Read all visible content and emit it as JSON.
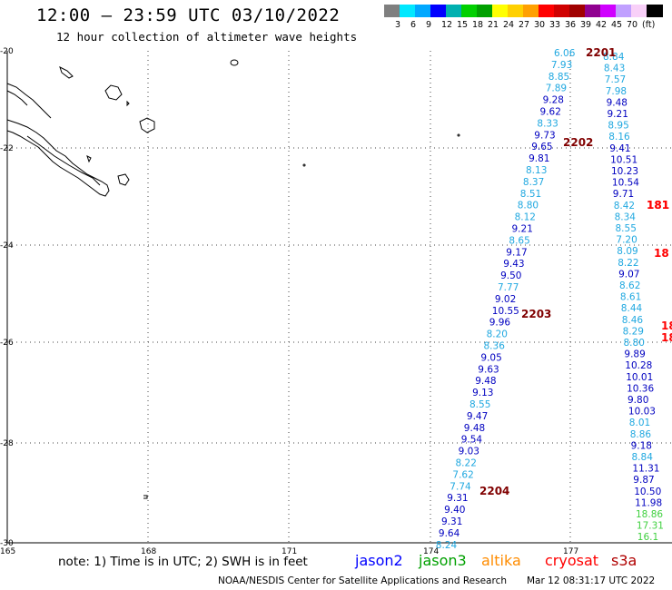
{
  "header": {
    "title": "12:00 — 23:59 UTC 03/10/2022",
    "subtitle": "12 hour collection of altimeter wave heights"
  },
  "color_scale": {
    "unit_label": "(ft)",
    "colors": [
      "#7f7f7f",
      "#00e8ff",
      "#00a8ff",
      "#0000ff",
      "#00b0b0",
      "#00d000",
      "#00a000",
      "#ffff00",
      "#ffd000",
      "#ffa000",
      "#ff0000",
      "#d00000",
      "#a00000",
      "#900090",
      "#d000ff",
      "#c0a0ff",
      "#f8d0f8",
      "#000000"
    ],
    "labels": [
      "3",
      "6",
      "9",
      "12",
      "15",
      "18",
      "21",
      "24",
      "27",
      "30",
      "33",
      "36",
      "39",
      "42",
      "45",
      "70",
      "(ft)"
    ]
  },
  "map": {
    "lat_labels": [
      "-20",
      "-22",
      "-24",
      "-26",
      "-28",
      "-30"
    ],
    "lon_labels": [
      "165",
      "168",
      "171",
      "174",
      "177"
    ],
    "track_labels": [
      {
        "text": "2201",
        "color": "#800000"
      },
      {
        "text": "2202",
        "color": "#800000"
      },
      {
        "text": "2203",
        "color": "#800000"
      },
      {
        "text": "2204",
        "color": "#800000"
      },
      {
        "text": "181",
        "color": "#ff0000"
      },
      {
        "text": "181",
        "color": "#ff0000"
      },
      {
        "text": "18",
        "color": "#ff0000"
      },
      {
        "text": "18",
        "color": "#ff0000"
      },
      {
        "text": "18",
        "color": "#ff0000"
      }
    ],
    "track1_values": [
      {
        "v": "6.06",
        "c": "#20a8e0"
      },
      {
        "v": "7.93",
        "c": "#20a8e0"
      },
      {
        "v": "8.85",
        "c": "#20a8e0"
      },
      {
        "v": "7.89",
        "c": "#20a8e0"
      },
      {
        "v": "9.28",
        "c": "#0000c0"
      },
      {
        "v": "9.62",
        "c": "#0000c0"
      },
      {
        "v": "8.33",
        "c": "#20a8e0"
      },
      {
        "v": "9.73",
        "c": "#0000c0"
      },
      {
        "v": "9.65",
        "c": "#0000c0"
      },
      {
        "v": "9.81",
        "c": "#0000c0"
      },
      {
        "v": "8.13",
        "c": "#20a8e0"
      },
      {
        "v": "8.37",
        "c": "#20a8e0"
      },
      {
        "v": "8.51",
        "c": "#20a8e0"
      },
      {
        "v": "8.80",
        "c": "#20a8e0"
      },
      {
        "v": "8.12",
        "c": "#20a8e0"
      },
      {
        "v": "9.21",
        "c": "#0000c0"
      },
      {
        "v": "8.65",
        "c": "#20a8e0"
      },
      {
        "v": "9.17",
        "c": "#0000c0"
      },
      {
        "v": "9.43",
        "c": "#0000c0"
      },
      {
        "v": "9.50",
        "c": "#0000c0"
      },
      {
        "v": "7.77",
        "c": "#20a8e0"
      },
      {
        "v": "9.02",
        "c": "#0000c0"
      },
      {
        "v": "10.55",
        "c": "#0000c0"
      },
      {
        "v": "9.96",
        "c": "#0000c0"
      },
      {
        "v": "8.20",
        "c": "#20a8e0"
      },
      {
        "v": "8.36",
        "c": "#20a8e0"
      },
      {
        "v": "9.05",
        "c": "#0000c0"
      },
      {
        "v": "9.63",
        "c": "#0000c0"
      },
      {
        "v": "9.48",
        "c": "#0000c0"
      },
      {
        "v": "9.13",
        "c": "#0000c0"
      },
      {
        "v": "8.55",
        "c": "#20a8e0"
      },
      {
        "v": "9.47",
        "c": "#0000c0"
      },
      {
        "v": "9.48",
        "c": "#0000c0"
      },
      {
        "v": "9.54",
        "c": "#0000c0"
      },
      {
        "v": "9.03",
        "c": "#0000c0"
      },
      {
        "v": "8.22",
        "c": "#20a8e0"
      },
      {
        "v": "7.62",
        "c": "#20a8e0"
      },
      {
        "v": "7.74",
        "c": "#20a8e0"
      },
      {
        "v": "9.31",
        "c": "#0000c0"
      },
      {
        "v": "9.40",
        "c": "#0000c0"
      },
      {
        "v": "9.31",
        "c": "#0000c0"
      },
      {
        "v": "9.64",
        "c": "#0000c0"
      },
      {
        "v": "8.24",
        "c": "#20a8e0"
      }
    ],
    "track2_values": [
      {
        "v": "8.84",
        "c": "#20a8e0"
      },
      {
        "v": "8.43",
        "c": "#20a8e0"
      },
      {
        "v": "7.57",
        "c": "#20a8e0"
      },
      {
        "v": "7.98",
        "c": "#20a8e0"
      },
      {
        "v": "9.48",
        "c": "#0000c0"
      },
      {
        "v": "9.21",
        "c": "#0000c0"
      },
      {
        "v": "8.95",
        "c": "#20a8e0"
      },
      {
        "v": "8.16",
        "c": "#20a8e0"
      },
      {
        "v": "9.41",
        "c": "#0000c0"
      },
      {
        "v": "10.51",
        "c": "#0000c0"
      },
      {
        "v": "10.23",
        "c": "#0000c0"
      },
      {
        "v": "10.54",
        "c": "#0000c0"
      },
      {
        "v": "9.71",
        "c": "#0000c0"
      },
      {
        "v": "8.42",
        "c": "#20a8e0"
      },
      {
        "v": "8.34",
        "c": "#20a8e0"
      },
      {
        "v": "8.55",
        "c": "#20a8e0"
      },
      {
        "v": "7.20",
        "c": "#20a8e0"
      },
      {
        "v": "8.09",
        "c": "#20a8e0"
      },
      {
        "v": "8.22",
        "c": "#20a8e0"
      },
      {
        "v": "9.07",
        "c": "#0000c0"
      },
      {
        "v": "8.62",
        "c": "#20a8e0"
      },
      {
        "v": "8.61",
        "c": "#20a8e0"
      },
      {
        "v": "8.44",
        "c": "#20a8e0"
      },
      {
        "v": "8.46",
        "c": "#20a8e0"
      },
      {
        "v": "8.29",
        "c": "#20a8e0"
      },
      {
        "v": "8.80",
        "c": "#20a8e0"
      },
      {
        "v": "9.89",
        "c": "#0000c0"
      },
      {
        "v": "10.28",
        "c": "#0000c0"
      },
      {
        "v": "10.01",
        "c": "#0000c0"
      },
      {
        "v": "10.36",
        "c": "#0000c0"
      },
      {
        "v": "9.80",
        "c": "#0000c0"
      },
      {
        "v": "10.03",
        "c": "#0000c0"
      },
      {
        "v": "8.01",
        "c": "#20a8e0"
      },
      {
        "v": "8.86",
        "c": "#20a8e0"
      },
      {
        "v": "9.18",
        "c": "#0000c0"
      },
      {
        "v": "8.84",
        "c": "#20a8e0"
      },
      {
        "v": "11.31",
        "c": "#0000c0"
      },
      {
        "v": "9.87",
        "c": "#0000c0"
      },
      {
        "v": "10.50",
        "c": "#0000c0"
      },
      {
        "v": "11.98",
        "c": "#0000c0"
      },
      {
        "v": "18.86",
        "c": "#40d040"
      },
      {
        "v": "17.31",
        "c": "#40d040"
      },
      {
        "v": "16.1",
        "c": "#40d040"
      }
    ]
  },
  "footer": {
    "note": "note: 1) Time is in UTC; 2) SWH is in feet",
    "satellites": [
      {
        "name": "jason2",
        "color": "#0000ff"
      },
      {
        "name": "jason3",
        "color": "#00a000"
      },
      {
        "name": "altika",
        "color": "#ff8c00"
      },
      {
        "name": "cryosat",
        "color": "#ff0000"
      },
      {
        "name": "s3a",
        "color": "#b00000"
      }
    ],
    "credit": "NOAA/NESDIS Center for Satellite Applications and Research",
    "updated": "Mar 12 08:31:17 UTC 2022"
  }
}
